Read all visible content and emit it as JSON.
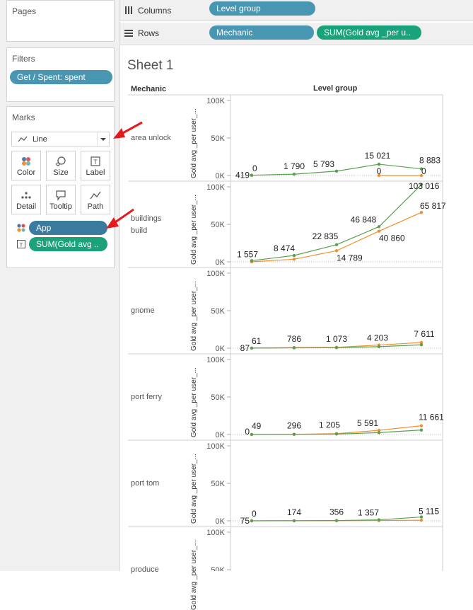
{
  "pages": {
    "title": "Pages"
  },
  "filters": {
    "title": "Filters",
    "pill": "Get / Spent: spent"
  },
  "marks": {
    "title": "Marks",
    "mark_type": "Line",
    "buttons": [
      {
        "label": "Color",
        "icon": "color-dots-icon"
      },
      {
        "label": "Size",
        "icon": "size-icon"
      },
      {
        "label": "Label",
        "icon": "label-icon"
      },
      {
        "label": "Detail",
        "icon": "detail-icon"
      },
      {
        "label": "Tooltip",
        "icon": "tooltip-icon"
      },
      {
        "label": "Path",
        "icon": "path-icon"
      }
    ],
    "fields": [
      {
        "label": "App",
        "icon": "color-dots-icon"
      },
      {
        "label": "SUM(Gold avg ..",
        "icon": "label-icon"
      }
    ]
  },
  "columns": {
    "label": "Columns",
    "pill": "Level group"
  },
  "rows": {
    "label": "Rows",
    "pills": [
      "Mechanic",
      "SUM(Gold avg _per u.."
    ]
  },
  "sheet": {
    "title": "Sheet 1",
    "row_header": "Mechanic",
    "column_header": "Level group"
  },
  "colors": {
    "green": "#59a14f",
    "orange": "#f28e2b",
    "pill_blue": "#4996b2",
    "pill_green": "#1aa37a",
    "annotation_red": "#e41a1c"
  },
  "chart_data": {
    "type": "line",
    "axis_title": "Gold avg _per user_...",
    "y_ticks": [
      "100K",
      "50K",
      "0K"
    ],
    "ylim": [
      0,
      100000
    ],
    "x_points": 5,
    "panels": [
      {
        "mechanic": "area unlock",
        "green": [
          419,
          1790,
          5793,
          15021,
          8883
        ],
        "orange": [
          0,
          null,
          null,
          0,
          0
        ],
        "labels": [
          {
            "text": "419",
            "i": 0,
            "v": 419,
            "anchor": "end",
            "dx": -3,
            "dy": 4
          },
          {
            "text": "0",
            "i": 0,
            "v": 0,
            "anchor": "start",
            "dx": 1,
            "dy": -6
          },
          {
            "text": "1 790",
            "i": 1,
            "v": 1790,
            "anchor": "middle",
            "dx": 0,
            "dy": -7
          },
          {
            "text": "5 793",
            "i": 2,
            "v": 5793,
            "anchor": "middle",
            "dx": -18,
            "dy": -6
          },
          {
            "text": "15 021",
            "i": 3,
            "v": 15021,
            "anchor": "middle",
            "dx": -2,
            "dy": -8
          },
          {
            "text": "0",
            "i": 3,
            "v": 0,
            "anchor": "middle",
            "dx": 0,
            "dy": -2
          },
          {
            "text": "8 883",
            "i": 4,
            "v": 8883,
            "anchor": "start",
            "dx": -3,
            "dy": -8
          },
          {
            "text": "0",
            "i": 4,
            "v": 0,
            "anchor": "start",
            "dx": 0,
            "dy": -2
          }
        ]
      },
      {
        "mechanic": "buildings build",
        "green": [
          1557,
          8474,
          22835,
          46848,
          103016
        ],
        "orange": [
          0,
          3500,
          14789,
          40860,
          65817
        ],
        "labels": [
          {
            "text": "1 557",
            "i": 0,
            "v": 1557,
            "anchor": "middle",
            "dx": -6,
            "dy": -5
          },
          {
            "text": "8 474",
            "i": 1,
            "v": 8474,
            "anchor": "middle",
            "dx": -14,
            "dy": -6
          },
          {
            "text": "22 835",
            "i": 2,
            "v": 22835,
            "anchor": "middle",
            "dx": -16,
            "dy": -8
          },
          {
            "text": "14 789",
            "i": 2,
            "v": 14789,
            "anchor": "start",
            "dx": 0,
            "dy": 14
          },
          {
            "text": "46 848",
            "i": 3,
            "v": 46848,
            "anchor": "middle",
            "dx": -22,
            "dy": -6
          },
          {
            "text": "40 860",
            "i": 3,
            "v": 40860,
            "anchor": "start",
            "dx": 0,
            "dy": 14
          },
          {
            "text": "103 016",
            "i": 4,
            "v": 103016,
            "anchor": "start",
            "dx": -18,
            "dy": 6
          },
          {
            "text": "65 817",
            "i": 4,
            "v": 65817,
            "anchor": "start",
            "dx": -2,
            "dy": -5
          }
        ]
      },
      {
        "mechanic": "gnome",
        "green": [
          87,
          400,
          700,
          2000,
          4500
        ],
        "orange": [
          61,
          786,
          1073,
          4203,
          7611
        ],
        "labels": [
          {
            "text": "87",
            "i": 0,
            "v": 87,
            "anchor": "end",
            "dx": -3,
            "dy": 4
          },
          {
            "text": "61",
            "i": 0,
            "v": 61,
            "anchor": "start",
            "dx": 0,
            "dy": -6
          },
          {
            "text": "786",
            "i": 1,
            "v": 786,
            "anchor": "middle",
            "dx": 0,
            "dy": -8
          },
          {
            "text": "1 073",
            "i": 2,
            "v": 1073,
            "anchor": "middle",
            "dx": 0,
            "dy": -8
          },
          {
            "text": "4 203",
            "i": 3,
            "v": 4203,
            "anchor": "middle",
            "dx": -2,
            "dy": -6
          },
          {
            "text": "7 611",
            "i": 4,
            "v": 7611,
            "anchor": "middle",
            "dx": 4,
            "dy": -8
          }
        ]
      },
      {
        "mechanic": "port ferry",
        "green": [
          0,
          200,
          600,
          2500,
          6000
        ],
        "orange": [
          49,
          296,
          1205,
          5591,
          11661
        ],
        "labels": [
          {
            "text": "0",
            "i": 0,
            "v": 0,
            "anchor": "end",
            "dx": -3,
            "dy": 0
          },
          {
            "text": "49",
            "i": 0,
            "v": 49,
            "anchor": "start",
            "dx": 0,
            "dy": -8
          },
          {
            "text": "296",
            "i": 1,
            "v": 296,
            "anchor": "middle",
            "dx": 0,
            "dy": -8
          },
          {
            "text": "1 205",
            "i": 2,
            "v": 1205,
            "anchor": "middle",
            "dx": -10,
            "dy": -8
          },
          {
            "text": "5 591",
            "i": 3,
            "v": 5591,
            "anchor": "middle",
            "dx": -16,
            "dy": -6
          },
          {
            "text": "11 661",
            "i": 4,
            "v": 11661,
            "anchor": "start",
            "dx": -4,
            "dy": -8
          }
        ]
      },
      {
        "mechanic": "port tom",
        "green": [
          75,
          174,
          356,
          1357,
          5115
        ],
        "orange": [
          0,
          100,
          200,
          400,
          800
        ],
        "labels": [
          {
            "text": "75",
            "i": 0,
            "v": 75,
            "anchor": "end",
            "dx": -3,
            "dy": 4
          },
          {
            "text": "0",
            "i": 0,
            "v": 0,
            "anchor": "start",
            "dx": 0,
            "dy": -6
          },
          {
            "text": "174",
            "i": 1,
            "v": 174,
            "anchor": "middle",
            "dx": 0,
            "dy": -8
          },
          {
            "text": "356",
            "i": 2,
            "v": 356,
            "anchor": "middle",
            "dx": 0,
            "dy": -8
          },
          {
            "text": "1 357",
            "i": 3,
            "v": 1357,
            "anchor": "middle",
            "dx": -15,
            "dy": -6
          },
          {
            "text": "5 115",
            "i": 4,
            "v": 5115,
            "anchor": "start",
            "dx": -4,
            "dy": -4
          }
        ]
      },
      {
        "mechanic": "produce",
        "green": [],
        "orange": [],
        "labels": []
      }
    ]
  }
}
